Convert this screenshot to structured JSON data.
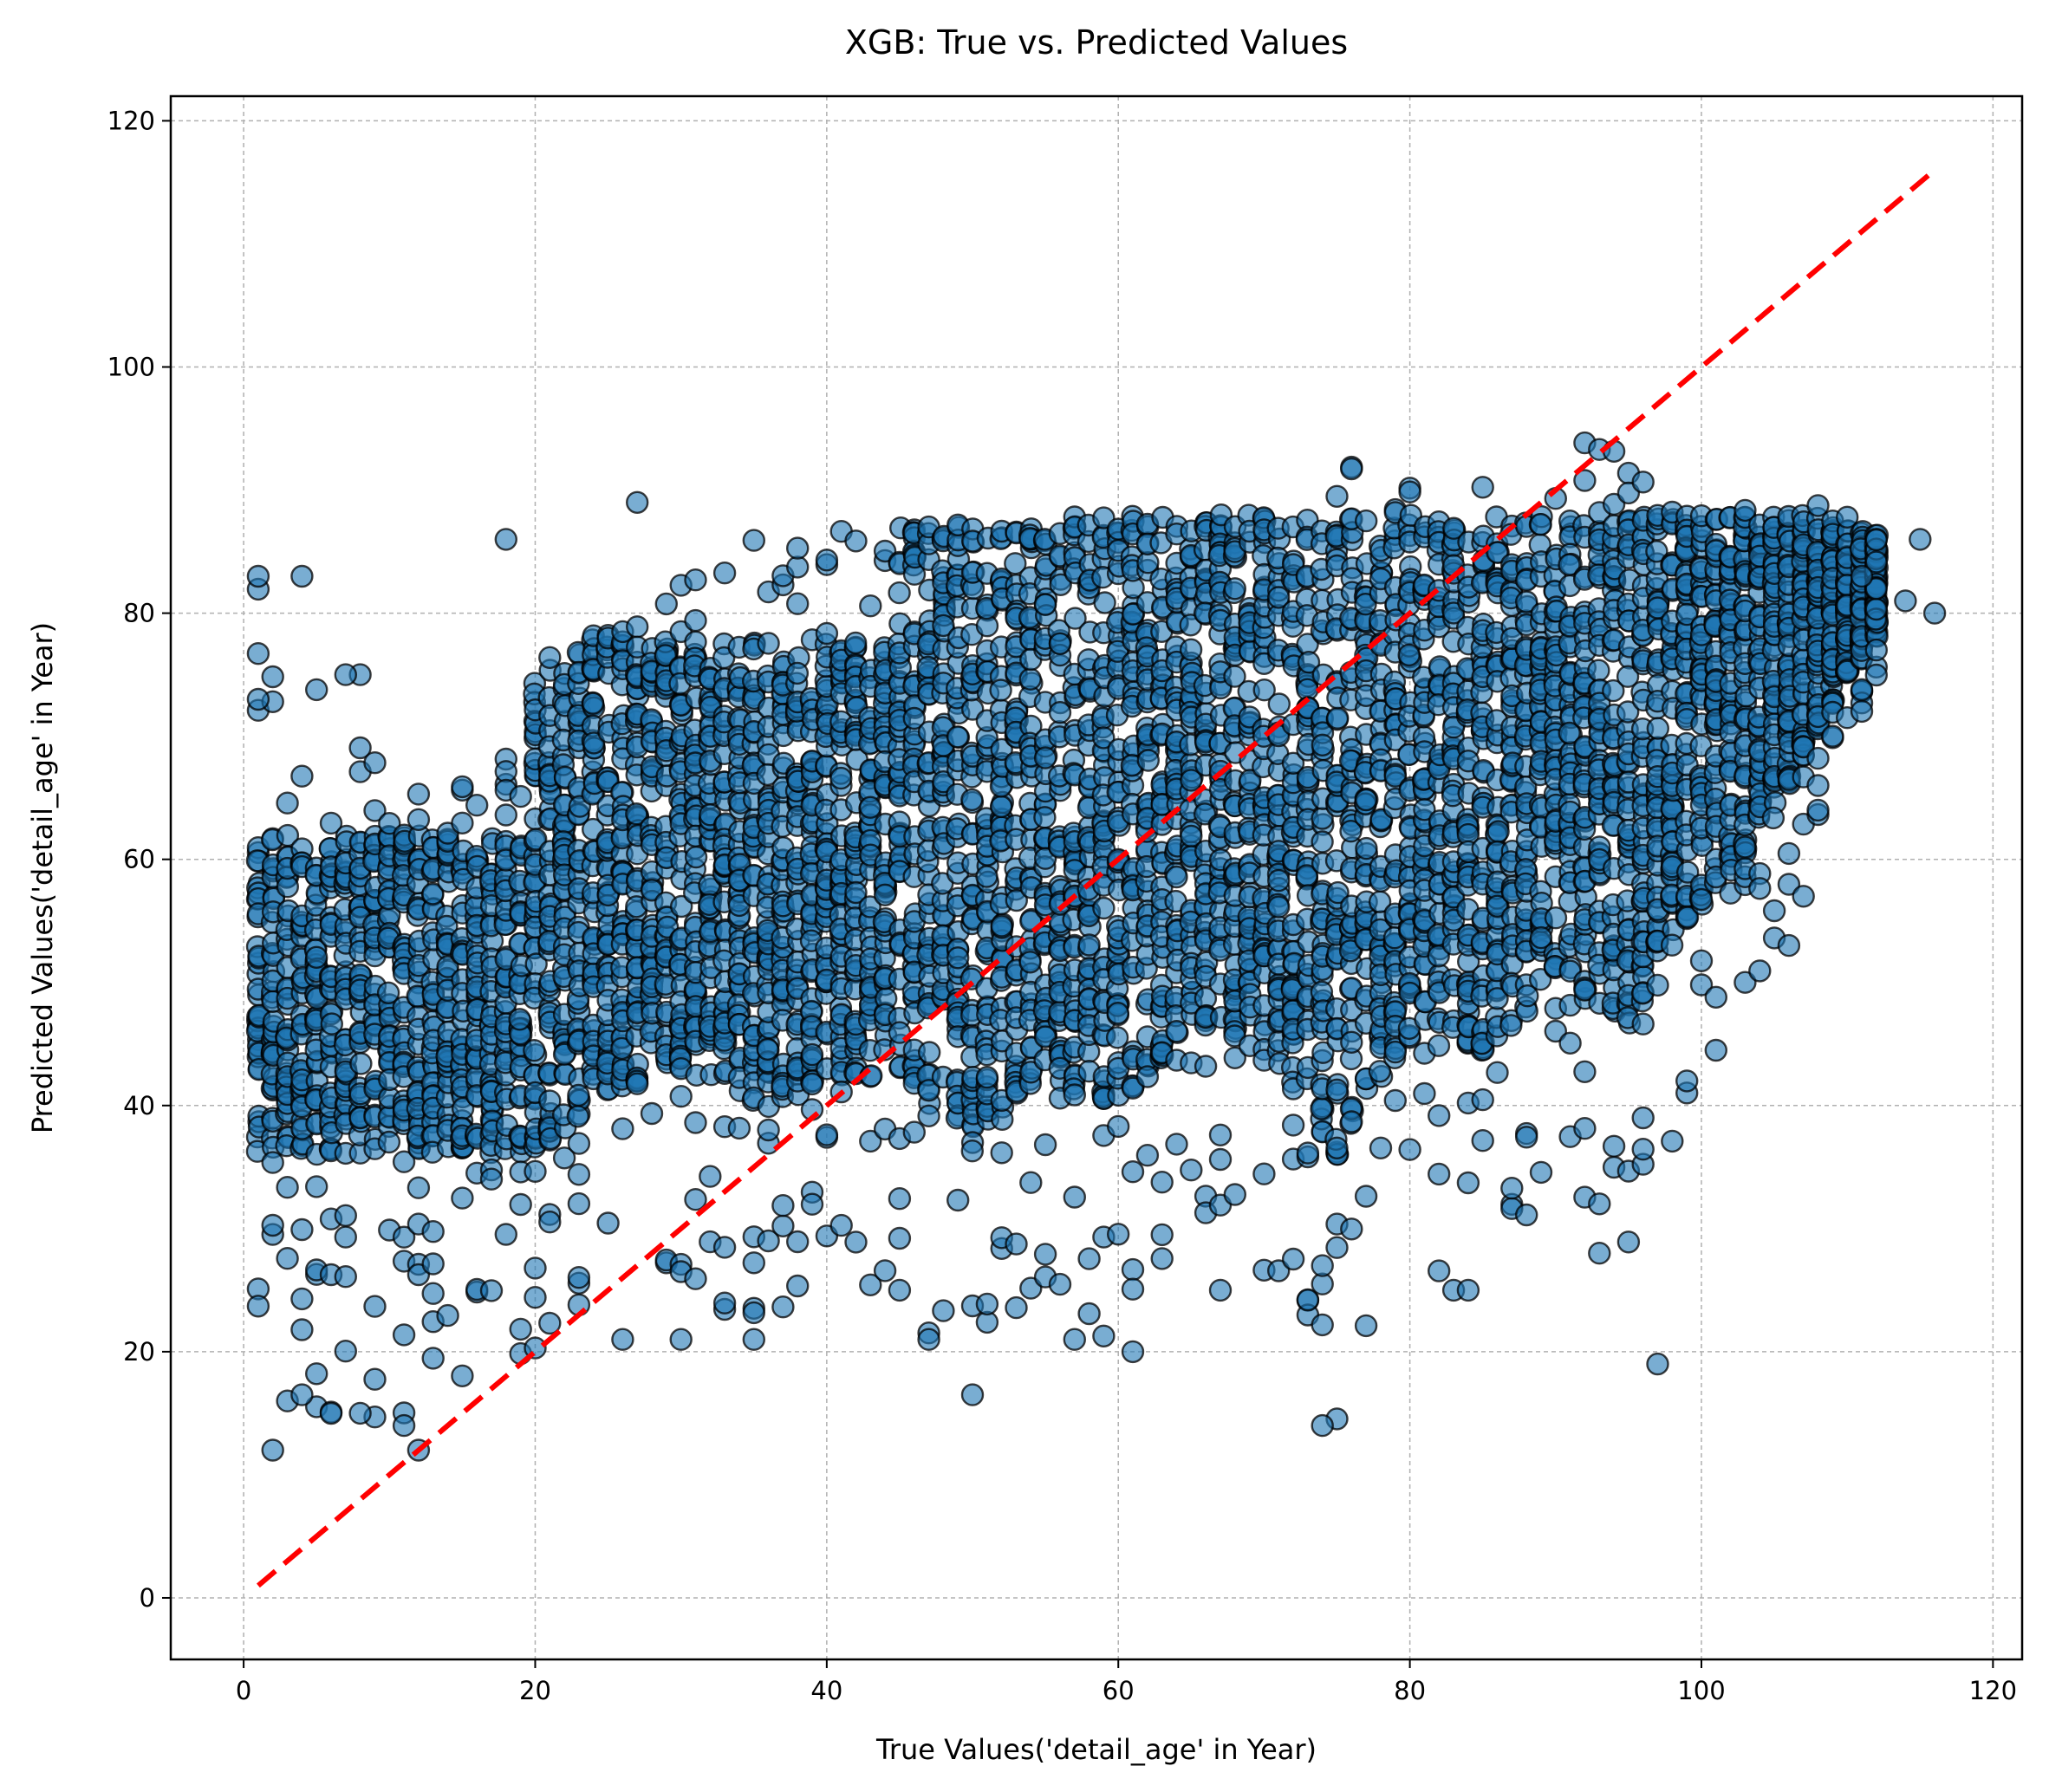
{
  "chart_data": {
    "type": "scatter",
    "title": "XGB: True vs. Predicted Values",
    "xlabel": "True Values('detail_age' in Year)",
    "ylabel": "Predicted Values('detail_age' in Year)",
    "xlim": [
      -5,
      122
    ],
    "ylim": [
      -5,
      122
    ],
    "xticks": [
      0,
      20,
      40,
      60,
      80,
      100,
      120
    ],
    "yticks": [
      0,
      20,
      40,
      60,
      80,
      100,
      120
    ],
    "grid": true,
    "reference_line": {
      "x": [
        1,
        116
      ],
      "y": [
        1,
        116
      ],
      "style": "dashed",
      "color": "#ff0000"
    },
    "point_color": "#1f77b4",
    "point_edge_color": "#000000",
    "point_alpha": 0.6,
    "density_envelope": [
      {
        "x": 1,
        "min": 18,
        "max": 83
      },
      {
        "x": 5,
        "min": 15,
        "max": 75
      },
      {
        "x": 10,
        "min": 14,
        "max": 67
      },
      {
        "x": 15,
        "min": 18,
        "max": 66
      },
      {
        "x": 20,
        "min": 20,
        "max": 76
      },
      {
        "x": 25,
        "min": 26,
        "max": 80
      },
      {
        "x": 30,
        "min": 26,
        "max": 86
      },
      {
        "x": 35,
        "min": 21,
        "max": 87
      },
      {
        "x": 40,
        "min": 24,
        "max": 87
      },
      {
        "x": 45,
        "min": 25,
        "max": 88
      },
      {
        "x": 50,
        "min": 16,
        "max": 88
      },
      {
        "x": 55,
        "min": 25,
        "max": 88
      },
      {
        "x": 60,
        "min": 20,
        "max": 89
      },
      {
        "x": 65,
        "min": 30,
        "max": 90
      },
      {
        "x": 70,
        "min": 26,
        "max": 91
      },
      {
        "x": 75,
        "min": 14,
        "max": 92
      },
      {
        "x": 80,
        "min": 27,
        "max": 92
      },
      {
        "x": 85,
        "min": 25,
        "max": 93
      },
      {
        "x": 90,
        "min": 33,
        "max": 94
      },
      {
        "x": 95,
        "min": 28,
        "max": 94
      },
      {
        "x": 100,
        "min": 42,
        "max": 93
      },
      {
        "x": 105,
        "min": 53,
        "max": 90
      },
      {
        "x": 110,
        "min": 70,
        "max": 88
      },
      {
        "x": 116,
        "min": 80,
        "max": 86
      }
    ],
    "outliers": [
      {
        "x": 1,
        "y": 83
      },
      {
        "x": 4,
        "y": 83
      },
      {
        "x": 18,
        "y": 86
      },
      {
        "x": 27,
        "y": 89
      },
      {
        "x": 115,
        "y": 86
      },
      {
        "x": 116,
        "y": 80
      },
      {
        "x": 2,
        "y": 12
      },
      {
        "x": 12,
        "y": 12
      },
      {
        "x": 50,
        "y": 16.5
      },
      {
        "x": 74,
        "y": 14
      },
      {
        "x": 97,
        "y": 19
      },
      {
        "x": 61,
        "y": 20
      },
      {
        "x": 57,
        "y": 21
      },
      {
        "x": 47,
        "y": 21
      },
      {
        "x": 35,
        "y": 21
      },
      {
        "x": 30,
        "y": 21
      },
      {
        "x": 26,
        "y": 21
      },
      {
        "x": 8,
        "y": 15
      },
      {
        "x": 3,
        "y": 16
      },
      {
        "x": 4,
        "y": 16.5
      },
      {
        "x": 11,
        "y": 14
      },
      {
        "x": 45,
        "y": 25
      },
      {
        "x": 83,
        "y": 25
      },
      {
        "x": 84,
        "y": 25
      },
      {
        "x": 67,
        "y": 25
      },
      {
        "x": 93,
        "y": 28
      },
      {
        "x": 96,
        "y": 39
      },
      {
        "x": 99,
        "y": 42
      },
      {
        "x": 106,
        "y": 53
      },
      {
        "x": 107,
        "y": 57
      },
      {
        "x": 108,
        "y": 64
      },
      {
        "x": 108,
        "y": 66
      },
      {
        "x": 109,
        "y": 70
      },
      {
        "x": 112,
        "y": 82
      },
      {
        "x": 111,
        "y": 83
      },
      {
        "x": 114,
        "y": 81
      },
      {
        "x": 8,
        "y": 75
      },
      {
        "x": 7,
        "y": 75
      },
      {
        "x": 1,
        "y": 73
      }
    ]
  }
}
